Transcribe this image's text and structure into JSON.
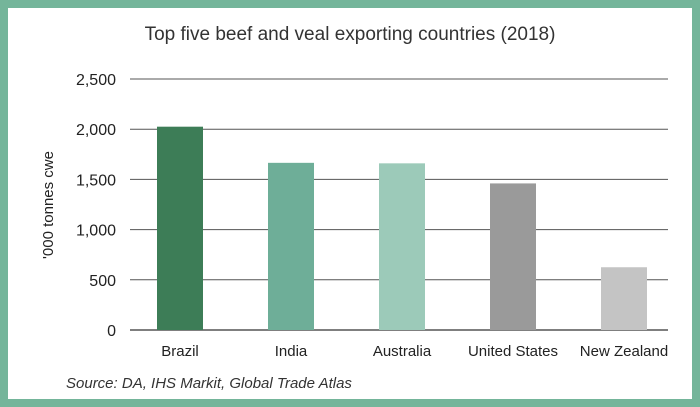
{
  "chart_data": {
    "type": "bar",
    "title": "Top five beef and veal exporting countries (2018)",
    "xlabel": "",
    "ylabel": "'000 tonnes cwe",
    "categories": [
      "Brazil",
      "India",
      "Australia",
      "United States",
      "New Zealand"
    ],
    "values": [
      2025,
      1665,
      1660,
      1460,
      625
    ],
    "bar_colors": [
      "#3d7d57",
      "#6eae98",
      "#9ccab9",
      "#9a9a9a",
      "#c4c4c4"
    ],
    "ylim": [
      0,
      2500
    ],
    "yticks": [
      0,
      500,
      1000,
      1500,
      2000,
      2500
    ],
    "ytick_labels": [
      "0",
      "500",
      "1,000",
      "1,500",
      "2,000",
      "2,500"
    ],
    "grid": true,
    "source": "Source: DA, IHS Markit, Global Trade Atlas"
  },
  "colors": {
    "frame": "#74b59a",
    "gridline": "#555555"
  }
}
